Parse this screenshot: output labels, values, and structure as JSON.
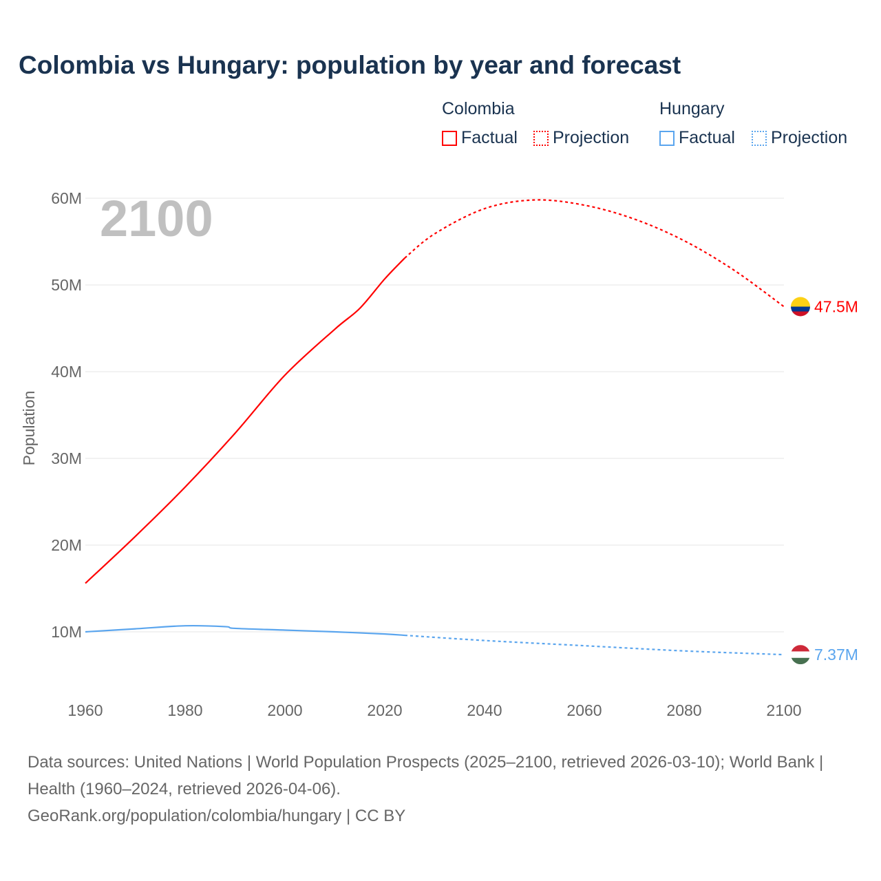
{
  "title": "Colombia vs Hungary: population by year and forecast",
  "legend": {
    "colombia": "Colombia",
    "hungary": "Hungary",
    "factual": "Factual",
    "projection": "Projection"
  },
  "colors": {
    "colombia": "#ff0000",
    "hungary": "#5aa5ee"
  },
  "year_label": "2100",
  "footer": {
    "line1": "Data sources: United Nations | World Population Prospects (2025–2100, retrieved 2026-03-10); World Bank | Health (1960–2024, retrieved 2026-04-06).",
    "line2": "GeoRank.org/population/colombia/hungary | CC BY"
  },
  "chart_data": {
    "type": "line",
    "title": "Colombia vs Hungary: population by year and forecast",
    "xlabel": "",
    "ylabel": "Population",
    "xlim": [
      1960,
      2100
    ],
    "ylim": [
      0,
      60
    ],
    "x_ticks": [
      "1960",
      "1980",
      "2000",
      "2020",
      "2040",
      "2060",
      "2080",
      "2100"
    ],
    "y_ticks": [
      "10M",
      "20M",
      "30M",
      "40M",
      "50M",
      "60M"
    ],
    "series": [
      {
        "name": "Colombia",
        "end_label": "47.5M",
        "factual": {
          "x": [
            1960,
            1970,
            1980,
            1990,
            2000,
            2010,
            2015,
            2020,
            2024
          ],
          "y": [
            15.6,
            21,
            26.7,
            32.9,
            39.6,
            44.9,
            47.3,
            50.7,
            53.1
          ]
        },
        "projection": {
          "x": [
            2024,
            2030,
            2040,
            2050,
            2060,
            2070,
            2080,
            2090,
            2100
          ],
          "y": [
            53.1,
            55.9,
            58.8,
            59.8,
            59.2,
            57.6,
            55.1,
            51.7,
            47.5
          ]
        }
      },
      {
        "name": "Hungary",
        "end_label": "7.37M",
        "factual": {
          "x": [
            1960,
            1970,
            1980,
            1988,
            1990,
            2000,
            2010,
            2020,
            2024
          ],
          "y": [
            10.0,
            10.35,
            10.7,
            10.6,
            10.4,
            10.2,
            10.0,
            9.75,
            9.6
          ]
        },
        "projection": {
          "x": [
            2024,
            2040,
            2060,
            2080,
            2100
          ],
          "y": [
            9.6,
            9.0,
            8.4,
            7.8,
            7.37
          ]
        }
      }
    ]
  }
}
